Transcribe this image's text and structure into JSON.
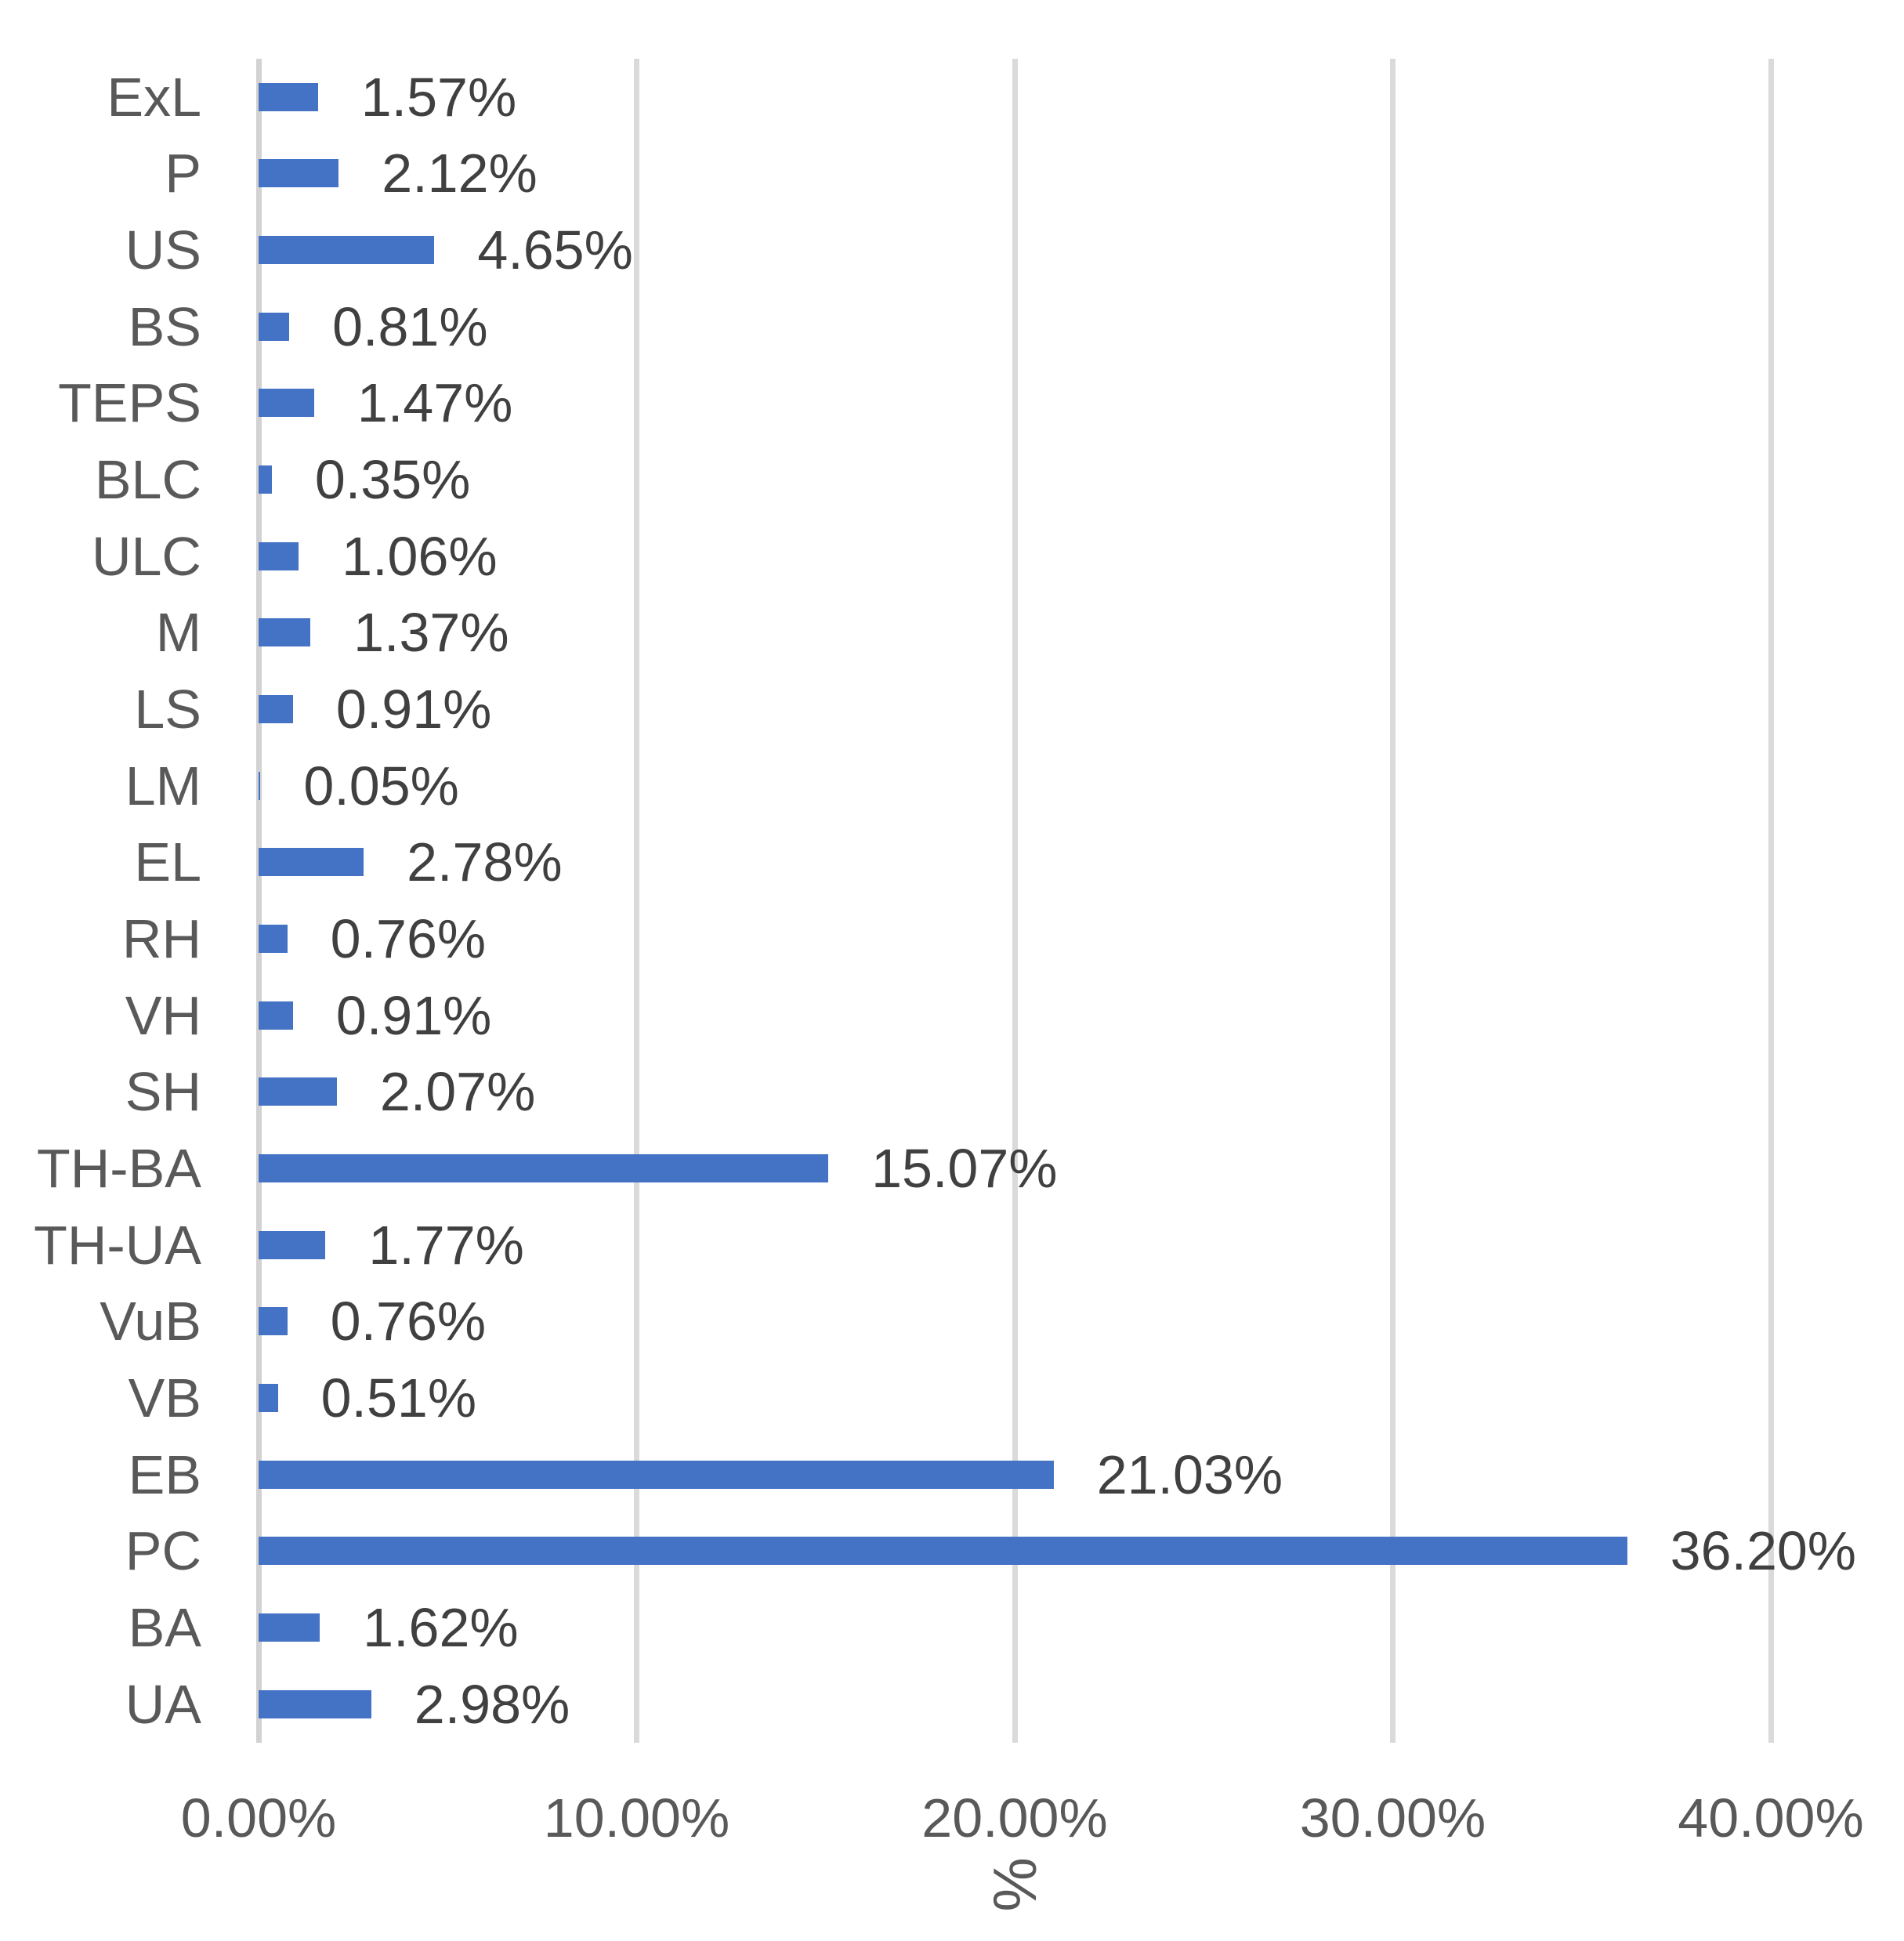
{
  "chart_data": {
    "type": "bar",
    "orientation": "horizontal",
    "title": "",
    "xlabel": "%",
    "ylabel": "",
    "categories": [
      "ExL",
      "P",
      "US",
      "BS",
      "TEPS",
      "BLC",
      "ULC",
      "M",
      "LS",
      "LM",
      "EL",
      "RH",
      "VH",
      "SH",
      "TH-BA",
      "TH-UA",
      "VuB",
      "VB",
      "EB",
      "PC",
      "BA",
      "UA"
    ],
    "values": [
      1.57,
      2.12,
      4.65,
      0.81,
      1.47,
      0.35,
      1.06,
      1.37,
      0.91,
      0.05,
      2.78,
      0.76,
      0.91,
      2.07,
      15.07,
      1.77,
      0.76,
      0.51,
      21.03,
      36.2,
      1.62,
      2.98
    ],
    "value_labels": [
      "1.57%",
      "2.12%",
      "4.65%",
      "0.81%",
      "1.47%",
      "0.35%",
      "1.06%",
      "1.37%",
      "0.91%",
      "0.05%",
      "2.78%",
      "0.76%",
      "0.91%",
      "2.07%",
      "15.07%",
      "1.77%",
      "0.76%",
      "0.51%",
      "21.03%",
      "36.20%",
      "1.62%",
      "2.98%"
    ],
    "x_ticks": [
      "0.00%",
      "10.00%",
      "20.00%",
      "30.00%",
      "40.00%"
    ],
    "x_tick_values": [
      0,
      10,
      20,
      30,
      40
    ],
    "xlim": [
      0,
      40
    ],
    "grid": true,
    "legend": "none",
    "colors": {
      "bar": "#4472C4",
      "gridline": "#DADADA",
      "axis_line": "#D2D2D2",
      "category_text": "#595959",
      "tick_text": "#595959",
      "value_text": "#404040",
      "background": "#FFFFFF"
    }
  }
}
